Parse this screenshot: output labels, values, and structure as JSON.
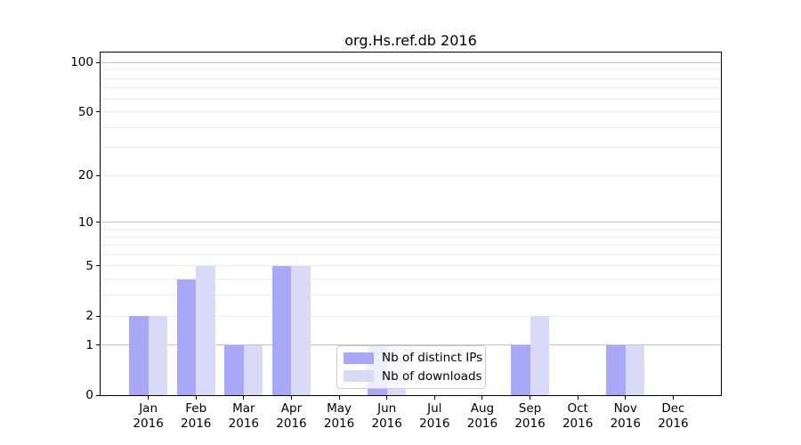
{
  "chart_data": {
    "type": "bar",
    "title": "org.Hs.ref.db 2016",
    "categories": [
      "Jan 2016",
      "Feb 2016",
      "Mar 2016",
      "Apr 2016",
      "May 2016",
      "Jun 2016",
      "Jul 2016",
      "Aug 2016",
      "Sep 2016",
      "Oct 2016",
      "Nov 2016",
      "Dec 2016"
    ],
    "series": [
      {
        "name": "Nb of distinct IPs",
        "color": "#a8a8f8",
        "values": [
          2,
          4,
          1,
          5,
          0,
          1,
          0,
          0,
          1,
          0,
          1,
          0
        ]
      },
      {
        "name": "Nb of downloads",
        "color": "#d9d9f8",
        "values": [
          2,
          5,
          1,
          5,
          0,
          1,
          0,
          0,
          2,
          0,
          1,
          0
        ]
      }
    ],
    "yscale": "log1p",
    "ylim": [
      0,
      115
    ],
    "yticks": [
      0,
      1,
      2,
      5,
      10,
      20,
      50,
      100
    ],
    "major_gridlines": [
      1,
      10,
      100
    ],
    "minor_gridlines": [
      2,
      3,
      4,
      5,
      6,
      7,
      8,
      9,
      20,
      30,
      40,
      50,
      60,
      70,
      80,
      90
    ],
    "grid_major_color": "#c3c3c3",
    "grid_minor_color": "#ebebeb",
    "legend_position": "lower center",
    "axis_color": "#000000"
  }
}
